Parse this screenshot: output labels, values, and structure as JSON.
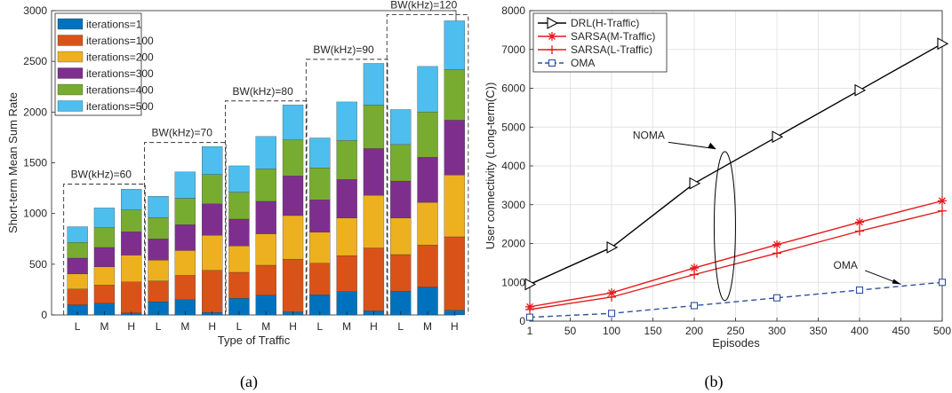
{
  "chart_data": [
    {
      "type": "bar",
      "stacked": true,
      "xlabel": "Type of Traffic",
      "ylabel": "Short-term Mean Sum Rate",
      "ylim": [
        0,
        3000
      ],
      "yticks": [
        0,
        500,
        1000,
        1500,
        2000,
        2500,
        3000
      ],
      "categories": [
        "L",
        "M",
        "H",
        "L",
        "M",
        "H",
        "L",
        "M",
        "H",
        "L",
        "M",
        "H",
        "L",
        "M",
        "H"
      ],
      "groups": [
        "BW(kHz)=60",
        "BW(kHz)=70",
        "BW(kHz)=80",
        "BW(kHz)=90",
        "BW(kHz)=120"
      ],
      "legend_position": "top-left",
      "series": [
        {
          "name": "iterations=1",
          "color": "#0072BD",
          "values": [
            100,
            115,
            20,
            130,
            150,
            25,
            165,
            195,
            30,
            200,
            230,
            40,
            235,
            275,
            45
          ]
        },
        {
          "name": "iterations=100",
          "color": "#D95319",
          "values": [
            155,
            180,
            305,
            205,
            240,
            415,
            255,
            295,
            520,
            310,
            355,
            620,
            360,
            415,
            725
          ]
        },
        {
          "name": "iterations=200",
          "color": "#EDB120",
          "values": [
            150,
            180,
            265,
            205,
            245,
            345,
            260,
            310,
            430,
            305,
            370,
            520,
            360,
            420,
            610
          ]
        },
        {
          "name": "iterations=300",
          "color": "#7E2F8E",
          "values": [
            155,
            190,
            230,
            210,
            255,
            310,
            265,
            320,
            390,
            320,
            380,
            460,
            365,
            445,
            540
          ]
        },
        {
          "name": "iterations=400",
          "color": "#77AC30",
          "values": [
            155,
            195,
            215,
            210,
            260,
            290,
            265,
            320,
            355,
            315,
            385,
            430,
            360,
            445,
            500
          ]
        },
        {
          "name": "iterations=500",
          "color": "#4DBEEE",
          "values": [
            155,
            195,
            205,
            210,
            260,
            275,
            260,
            320,
            345,
            295,
            380,
            410,
            345,
            450,
            480
          ]
        }
      ],
      "group_boxes": [
        {
          "label": "BW(kHz)=60",
          "top": 1290
        },
        {
          "label": "BW(kHz)=70",
          "top": 1700
        },
        {
          "label": "BW(kHz)=80",
          "top": 2110
        },
        {
          "label": "BW(kHz)=90",
          "top": 2520
        },
        {
          "label": "BW(kHz)=120",
          "top": 2960
        }
      ],
      "grid": false
    },
    {
      "type": "line",
      "xlabel": "Episodes",
      "ylabel": "User connectivity (Long-term(C))",
      "x": [
        1,
        100,
        200,
        300,
        400,
        500
      ],
      "xlim": [
        1,
        500
      ],
      "xticks": [
        1,
        50,
        100,
        150,
        200,
        250,
        300,
        350,
        400,
        450,
        500
      ],
      "ylim": [
        0,
        8000
      ],
      "yticks": [
        0,
        1000,
        2000,
        3000,
        4000,
        5000,
        6000,
        7000,
        8000
      ],
      "grid": true,
      "legend_position": "top-left",
      "series": [
        {
          "name": "DRL(H-Traffic)",
          "color": "#000000",
          "marker": "triangle-right",
          "dash": false,
          "values": [
            950,
            1900,
            3550,
            4750,
            5950,
            7150
          ]
        },
        {
          "name": "SARSA(M-Traffic)",
          "color": "#E41A1C",
          "marker": "asterisk",
          "dash": false,
          "values": [
            370,
            730,
            1370,
            1970,
            2550,
            3100
          ]
        },
        {
          "name": "SARSA(L-Traffic)",
          "color": "#E41A1C",
          "marker": "plus",
          "dash": false,
          "values": [
            300,
            620,
            1200,
            1750,
            2320,
            2840
          ]
        },
        {
          "name": "OMA",
          "color": "#2F4F9F",
          "marker": "square",
          "dash": true,
          "values": [
            100,
            200,
            400,
            600,
            800,
            1000
          ]
        }
      ],
      "annotations": [
        {
          "text": "NOMA",
          "x": 145,
          "y": 4700
        },
        {
          "text": "OMA",
          "x": 383,
          "y": 1350
        }
      ]
    }
  ],
  "captions": {
    "left": "(a)",
    "right": "(b)"
  }
}
